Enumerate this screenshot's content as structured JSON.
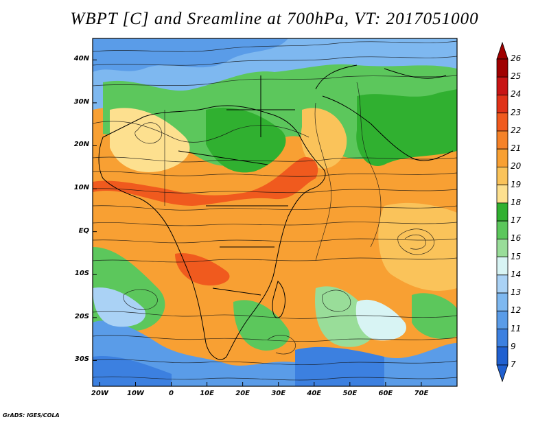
{
  "title": "WBPT [C] and Sreamline at 700hPa, VT: 2017051000",
  "footer": "GrADS: IGES/COLA",
  "lat_labels": [
    "40N",
    "30N",
    "20N",
    "10N",
    "EQ",
    "10S",
    "20S",
    "30S"
  ],
  "lat_values": [
    40,
    30,
    20,
    10,
    0,
    -10,
    -20,
    -30
  ],
  "lon_labels": [
    "20W",
    "10W",
    "0",
    "10E",
    "20E",
    "30E",
    "40E",
    "50E",
    "60E",
    "70E"
  ],
  "lon_values": [
    -20,
    -10,
    0,
    10,
    20,
    30,
    40,
    50,
    60,
    70
  ],
  "extent": {
    "lon_min": -22,
    "lon_max": 80,
    "lat_min": -36,
    "lat_max": 45
  },
  "colorbar": {
    "labels": [
      "26",
      "25",
      "24",
      "23",
      "22",
      "21",
      "20",
      "19",
      "18",
      "17",
      "16",
      "15",
      "14",
      "13",
      "12",
      "11",
      "9",
      "7"
    ],
    "colors": [
      "#a00000",
      "#c81414",
      "#e03218",
      "#f05a1e",
      "#f58228",
      "#f8a033",
      "#fac35a",
      "#fde08f",
      "#30b030",
      "#5cc75c",
      "#99dd99",
      "#d8f4f4",
      "#aad2f5",
      "#7eb8f0",
      "#5a9ce8",
      "#3c80e0",
      "#2060d0"
    ]
  }
}
